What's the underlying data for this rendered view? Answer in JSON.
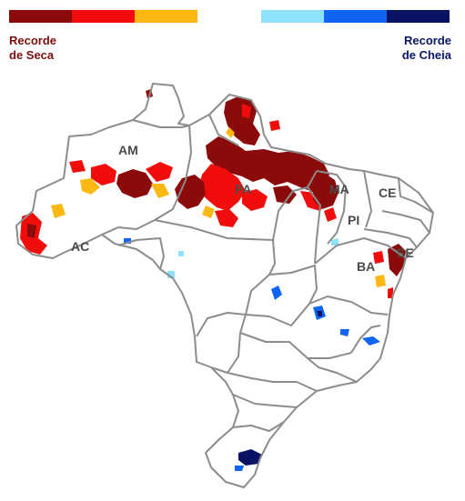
{
  "legend": {
    "drought": {
      "line1": "Recorde",
      "line2": "de Seca",
      "text_color": "#7b0e0e",
      "colors": [
        "#8b0a0a",
        "#f20d0d",
        "#fbb813"
      ]
    },
    "flood": {
      "line1": "Recorde",
      "line2": "de Cheia",
      "text_color": "#0b1760",
      "colors": [
        "#8fe2fb",
        "#0f64f2",
        "#0a1363"
      ]
    }
  },
  "map": {
    "border_color": "#8c8c8c",
    "state_labels": {
      "am": "AM",
      "ac": "AC",
      "pa": "PA",
      "ma": "MA",
      "ce": "CE",
      "pi": "PI",
      "se": "SE",
      "ba": "BA"
    }
  }
}
